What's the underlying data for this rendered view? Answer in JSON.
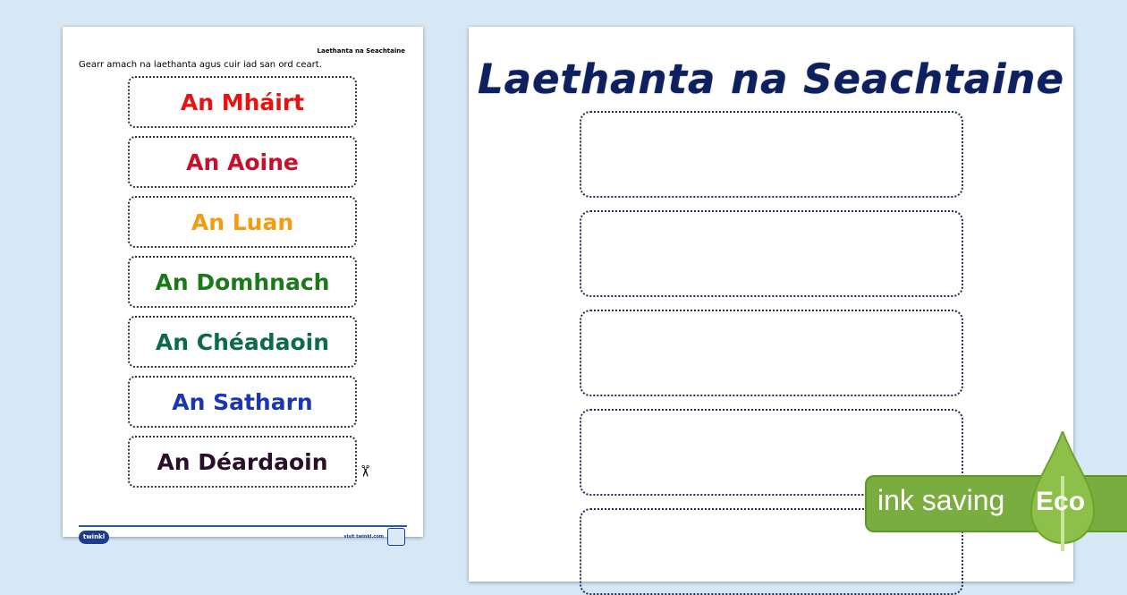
{
  "worksheet": {
    "header": "Laethanta na Seachtaine",
    "instruction": "Gearr amach na laethanta agus cuir iad san ord ceart.",
    "days": [
      {
        "label": "An Mháirt",
        "color": "#e8130f"
      },
      {
        "label": "An Aoine",
        "color": "#c8102e"
      },
      {
        "label": "An Luan",
        "color": "#f39c12"
      },
      {
        "label": "An Domhnach",
        "color": "#1a7a1a"
      },
      {
        "label": "An Chéadaoin",
        "color": "#0b6b4b"
      },
      {
        "label": "An Satharn",
        "color": "#1a35b5"
      },
      {
        "label": "An Déardaoin",
        "color": "#2a0f2a"
      }
    ],
    "footer_logo": "twinkl",
    "footer_link": "visit twinkl.com"
  },
  "answer_sheet": {
    "title": "Laethanta na Seachtaine",
    "title_color": "#0d2160"
  },
  "eco_badge": {
    "text": "ink saving",
    "label": "Eco",
    "color": "#7aad3f"
  }
}
